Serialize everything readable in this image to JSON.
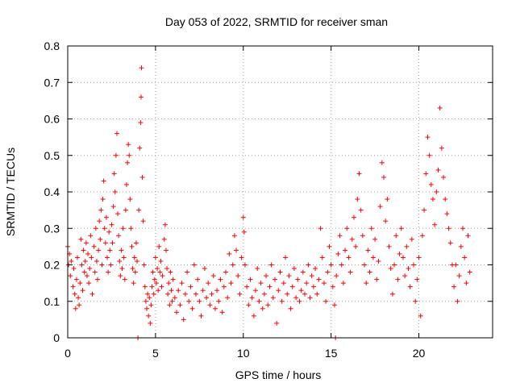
{
  "chart_data": {
    "type": "scatter",
    "title": "Day 053 of 2022, SRMTID for receiver sman",
    "xlabel": "GPS time / hours",
    "ylabel": "SRMTID / TECUs",
    "xlim": [
      0,
      24.2
    ],
    "ylim": [
      0,
      0.8
    ],
    "xticks": [
      0,
      5,
      10,
      15,
      20
    ],
    "yticks": [
      0,
      0.1,
      0.2,
      0.3,
      0.4,
      0.5,
      0.6,
      0.7,
      0.8
    ],
    "xtick_labels": [
      "0",
      "5",
      "10",
      "15",
      "20"
    ],
    "ytick_labels": [
      "0",
      "0.1",
      "0.2",
      "0.3",
      "0.4",
      "0.5",
      "0.6",
      "0.7",
      "0.8"
    ],
    "grid": true,
    "marker": "plus",
    "color": "#ff0000",
    "series": [
      {
        "name": "SRMTID",
        "points": [
          [
            0.0,
            0.25
          ],
          [
            0.05,
            0.2
          ],
          [
            0.1,
            0.23
          ],
          [
            0.15,
            0.17
          ],
          [
            0.2,
            0.21
          ],
          [
            0.3,
            0.14
          ],
          [
            0.35,
            0.19
          ],
          [
            0.4,
            0.12
          ],
          [
            0.45,
            0.08
          ],
          [
            0.5,
            0.16
          ],
          [
            0.55,
            0.22
          ],
          [
            0.6,
            0.11
          ],
          [
            0.65,
            0.09
          ],
          [
            0.7,
            0.15
          ],
          [
            0.75,
            0.27
          ],
          [
            0.8,
            0.2
          ],
          [
            0.85,
            0.13
          ],
          [
            0.9,
            0.24
          ],
          [
            0.95,
            0.18
          ],
          [
            1.0,
            0.21
          ],
          [
            1.05,
            0.26
          ],
          [
            1.1,
            0.17
          ],
          [
            1.15,
            0.23
          ],
          [
            1.2,
            0.15
          ],
          [
            1.25,
            0.19
          ],
          [
            1.3,
            0.28
          ],
          [
            1.35,
            0.22
          ],
          [
            1.4,
            0.12
          ],
          [
            1.5,
            0.25
          ],
          [
            1.55,
            0.18
          ],
          [
            1.6,
            0.3
          ],
          [
            1.65,
            0.21
          ],
          [
            1.7,
            0.16
          ],
          [
            1.75,
            0.24
          ],
          [
            1.8,
            0.32
          ],
          [
            1.85,
            0.27
          ],
          [
            1.9,
            0.35
          ],
          [
            1.95,
            0.2
          ],
          [
            2.0,
            0.38
          ],
          [
            2.05,
            0.43
          ],
          [
            2.1,
            0.3
          ],
          [
            2.15,
            0.26
          ],
          [
            2.2,
            0.33
          ],
          [
            2.25,
            0.22
          ],
          [
            2.3,
            0.18
          ],
          [
            2.35,
            0.29
          ],
          [
            2.4,
            0.24
          ],
          [
            2.45,
            0.2
          ],
          [
            2.5,
            0.31
          ],
          [
            2.55,
            0.26
          ],
          [
            2.6,
            0.36
          ],
          [
            2.65,
            0.45
          ],
          [
            2.7,
            0.4
          ],
          [
            2.75,
            0.5
          ],
          [
            2.8,
            0.56
          ],
          [
            2.85,
            0.34
          ],
          [
            2.9,
            0.28
          ],
          [
            2.95,
            0.21
          ],
          [
            3.0,
            0.17
          ],
          [
            3.05,
            0.24
          ],
          [
            3.1,
            0.19
          ],
          [
            3.15,
            0.3
          ],
          [
            3.2,
            0.22
          ],
          [
            3.25,
            0.16
          ],
          [
            3.3,
            0.35
          ],
          [
            3.35,
            0.42
          ],
          [
            3.4,
            0.48
          ],
          [
            3.45,
            0.53
          ],
          [
            3.5,
            0.5
          ],
          [
            3.55,
            0.38
          ],
          [
            3.6,
            0.3
          ],
          [
            3.65,
            0.25
          ],
          [
            3.7,
            0.19
          ],
          [
            3.75,
            0.15
          ],
          [
            3.8,
            0.22
          ],
          [
            3.85,
            0.18
          ],
          [
            3.9,
            0.26
          ],
          [
            3.95,
            0.21
          ],
          [
            4.0,
            0.0
          ],
          [
            4.05,
            0.35
          ],
          [
            4.1,
            0.52
          ],
          [
            4.15,
            0.59
          ],
          [
            4.18,
            0.66
          ],
          [
            4.2,
            0.74
          ],
          [
            4.25,
            0.44
          ],
          [
            4.3,
            0.32
          ],
          [
            4.35,
            0.2
          ],
          [
            4.4,
            0.14
          ],
          [
            4.45,
            0.1
          ],
          [
            4.5,
            0.08
          ],
          [
            4.55,
            0.12
          ],
          [
            4.6,
            0.06
          ],
          [
            4.65,
            0.11
          ],
          [
            4.7,
            0.04
          ],
          [
            4.75,
            0.09
          ],
          [
            4.8,
            0.14
          ],
          [
            4.85,
            0.18
          ],
          [
            4.9,
            0.12
          ],
          [
            4.95,
            0.16
          ],
          [
            5.0,
            0.22
          ],
          [
            5.05,
            0.15
          ],
          [
            5.1,
            0.19
          ],
          [
            5.15,
            0.13
          ],
          [
            5.2,
            0.25
          ],
          [
            5.25,
            0.18
          ],
          [
            5.3,
            0.21
          ],
          [
            5.35,
            0.14
          ],
          [
            5.4,
            0.17
          ],
          [
            5.5,
            0.27
          ],
          [
            5.55,
            0.31
          ],
          [
            5.6,
            0.24
          ],
          [
            5.65,
            0.19
          ],
          [
            5.7,
            0.12
          ],
          [
            5.75,
            0.15
          ],
          [
            5.8,
            0.09
          ],
          [
            5.85,
            0.18
          ],
          [
            5.9,
            0.13
          ],
          [
            5.95,
            0.1
          ],
          [
            6.0,
            0.16
          ],
          [
            6.1,
            0.11
          ],
          [
            6.2,
            0.07
          ],
          [
            6.3,
            0.13
          ],
          [
            6.4,
            0.09
          ],
          [
            6.5,
            0.15
          ],
          [
            6.6,
            0.05
          ],
          [
            6.7,
            0.12
          ],
          [
            6.8,
            0.18
          ],
          [
            6.9,
            0.1
          ],
          [
            7.0,
            0.14
          ],
          [
            7.1,
            0.08
          ],
          [
            7.2,
            0.2
          ],
          [
            7.3,
            0.12
          ],
          [
            7.4,
            0.16
          ],
          [
            7.5,
            0.1
          ],
          [
            7.6,
            0.06
          ],
          [
            7.7,
            0.13
          ],
          [
            7.8,
            0.19
          ],
          [
            7.9,
            0.11
          ],
          [
            8.0,
            0.15
          ],
          [
            8.1,
            0.09
          ],
          [
            8.2,
            0.12
          ],
          [
            8.3,
            0.17
          ],
          [
            8.4,
            0.08
          ],
          [
            8.5,
            0.13
          ],
          [
            8.6,
            0.1
          ],
          [
            8.7,
            0.16
          ],
          [
            8.8,
            0.07
          ],
          [
            8.9,
            0.14
          ],
          [
            9.0,
            0.18
          ],
          [
            9.1,
            0.11
          ],
          [
            9.2,
            0.23
          ],
          [
            9.3,
            0.15
          ],
          [
            9.4,
            0.2
          ],
          [
            9.5,
            0.28
          ],
          [
            9.6,
            0.24
          ],
          [
            9.7,
            0.17
          ],
          [
            9.8,
            0.12
          ],
          [
            9.9,
            0.22
          ],
          [
            10.0,
            0.33
          ],
          [
            10.05,
            0.29
          ],
          [
            10.1,
            0.2
          ],
          [
            10.2,
            0.14
          ],
          [
            10.3,
            0.09
          ],
          [
            10.4,
            0.16
          ],
          [
            10.5,
            0.11
          ],
          [
            10.6,
            0.06
          ],
          [
            10.7,
            0.13
          ],
          [
            10.8,
            0.19
          ],
          [
            10.9,
            0.1
          ],
          [
            11.0,
            0.15
          ],
          [
            11.1,
            0.08
          ],
          [
            11.2,
            0.12
          ],
          [
            11.3,
            0.17
          ],
          [
            11.4,
            0.09
          ],
          [
            11.5,
            0.14
          ],
          [
            11.6,
            0.2
          ],
          [
            11.7,
            0.11
          ],
          [
            11.8,
            0.16
          ],
          [
            11.9,
            0.04
          ],
          [
            12.0,
            0.13
          ],
          [
            12.1,
            0.18
          ],
          [
            12.2,
            0.1
          ],
          [
            12.3,
            0.15
          ],
          [
            12.4,
            0.22
          ],
          [
            12.5,
            0.12
          ],
          [
            12.6,
            0.17
          ],
          [
            12.7,
            0.08
          ],
          [
            12.8,
            0.14
          ],
          [
            12.9,
            0.19
          ],
          [
            13.0,
            0.11
          ],
          [
            13.1,
            0.16
          ],
          [
            13.2,
            0.1
          ],
          [
            13.3,
            0.13
          ],
          [
            13.4,
            0.18
          ],
          [
            13.5,
            0.12
          ],
          [
            13.6,
            0.15
          ],
          [
            13.7,
            0.2
          ],
          [
            13.8,
            0.11
          ],
          [
            13.9,
            0.17
          ],
          [
            14.0,
            0.14
          ],
          [
            14.1,
            0.19
          ],
          [
            14.2,
            0.12
          ],
          [
            14.3,
            0.16
          ],
          [
            14.4,
            0.3
          ],
          [
            14.5,
            0.22
          ],
          [
            14.6,
            0.15
          ],
          [
            14.7,
            0.1
          ],
          [
            14.8,
            0.18
          ],
          [
            14.9,
            0.25
          ],
          [
            15.0,
            0.2
          ],
          [
            15.1,
            0.14
          ],
          [
            15.2,
            0.09
          ],
          [
            15.25,
            0.0
          ],
          [
            15.3,
            0.17
          ],
          [
            15.4,
            0.23
          ],
          [
            15.5,
            0.28
          ],
          [
            15.6,
            0.2
          ],
          [
            15.7,
            0.15
          ],
          [
            15.8,
            0.24
          ],
          [
            15.9,
            0.3
          ],
          [
            16.0,
            0.22
          ],
          [
            16.1,
            0.18
          ],
          [
            16.2,
            0.27
          ],
          [
            16.3,
            0.33
          ],
          [
            16.4,
            0.25
          ],
          [
            16.5,
            0.38
          ],
          [
            16.6,
            0.45
          ],
          [
            16.7,
            0.35
          ],
          [
            16.8,
            0.28
          ],
          [
            16.9,
            0.2
          ],
          [
            17.0,
            0.15
          ],
          [
            17.1,
            0.24
          ],
          [
            17.2,
            0.18
          ],
          [
            17.3,
            0.3
          ],
          [
            17.4,
            0.22
          ],
          [
            17.5,
            0.27
          ],
          [
            17.6,
            0.16
          ],
          [
            17.7,
            0.21
          ],
          [
            17.8,
            0.36
          ],
          [
            17.9,
            0.48
          ],
          [
            18.0,
            0.44
          ],
          [
            18.1,
            0.32
          ],
          [
            18.2,
            0.38
          ],
          [
            18.3,
            0.25
          ],
          [
            18.4,
            0.19
          ],
          [
            18.5,
            0.12
          ],
          [
            18.6,
            0.2
          ],
          [
            18.7,
            0.28
          ],
          [
            18.8,
            0.16
          ],
          [
            18.9,
            0.23
          ],
          [
            19.0,
            0.3
          ],
          [
            19.1,
            0.22
          ],
          [
            19.2,
            0.17
          ],
          [
            19.3,
            0.25
          ],
          [
            19.4,
            0.19
          ],
          [
            19.5,
            0.14
          ],
          [
            19.6,
            0.27
          ],
          [
            19.7,
            0.2
          ],
          [
            19.8,
            0.1
          ],
          [
            19.9,
            0.16
          ],
          [
            20.0,
            0.22
          ],
          [
            20.1,
            0.06
          ],
          [
            20.2,
            0.28
          ],
          [
            20.3,
            0.35
          ],
          [
            20.4,
            0.45
          ],
          [
            20.5,
            0.55
          ],
          [
            20.6,
            0.5
          ],
          [
            20.7,
            0.42
          ],
          [
            20.8,
            0.38
          ],
          [
            20.9,
            0.31
          ],
          [
            21.0,
            0.4
          ],
          [
            21.1,
            0.46
          ],
          [
            21.2,
            0.63
          ],
          [
            21.3,
            0.52
          ],
          [
            21.4,
            0.44
          ],
          [
            21.5,
            0.38
          ],
          [
            21.6,
            0.34
          ],
          [
            21.7,
            0.3
          ],
          [
            21.8,
            0.26
          ],
          [
            21.9,
            0.2
          ],
          [
            22.0,
            0.14
          ],
          [
            22.1,
            0.2
          ],
          [
            22.2,
            0.1
          ],
          [
            22.3,
            0.17
          ],
          [
            22.4,
            0.25
          ],
          [
            22.5,
            0.3
          ],
          [
            22.6,
            0.22
          ],
          [
            22.7,
            0.15
          ],
          [
            22.8,
            0.28
          ],
          [
            22.9,
            0.18
          ]
        ]
      }
    ]
  }
}
